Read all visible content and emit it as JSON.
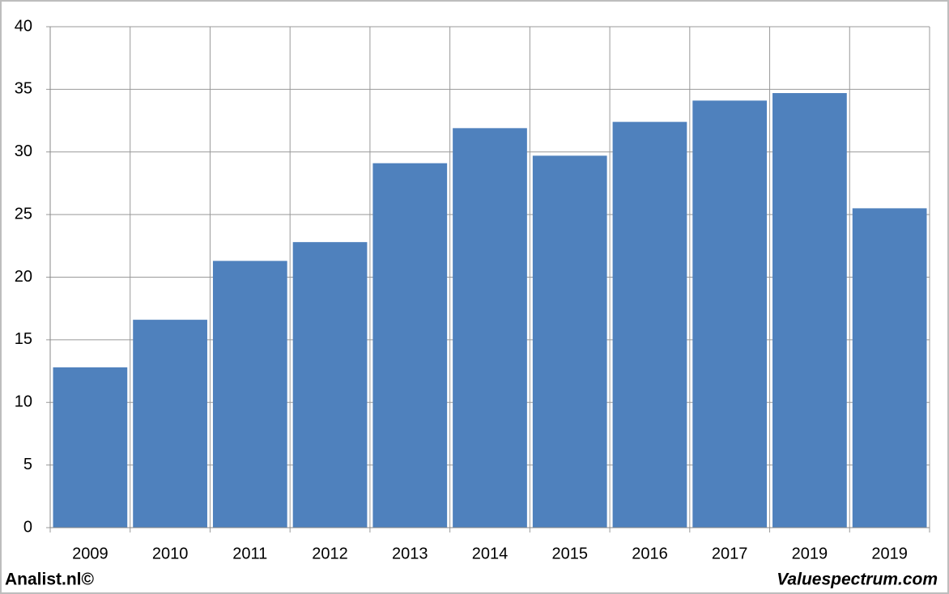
{
  "chart_data": {
    "type": "bar",
    "categories": [
      "2009",
      "2010",
      "2011",
      "2012",
      "2013",
      "2014",
      "2015",
      "2016",
      "2017",
      "2019",
      "2019"
    ],
    "values": [
      12.8,
      16.6,
      21.3,
      22.8,
      29.1,
      31.9,
      29.7,
      32.4,
      34.1,
      34.7,
      25.5
    ],
    "color": "#4f81bd",
    "ylim": [
      0,
      40
    ],
    "yticks": [
      0,
      5,
      10,
      15,
      20,
      25,
      30,
      35,
      40
    ],
    "grid": true,
    "footer_left": "Analist.nl©",
    "footer_right": "Valuespectrum.com"
  }
}
